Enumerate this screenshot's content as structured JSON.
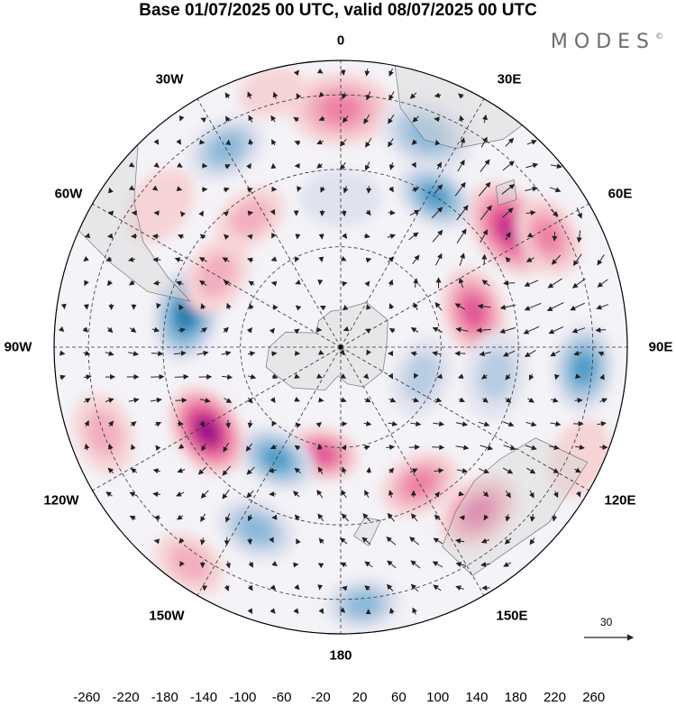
{
  "title": "Base 01/07/2025 00 UTC, valid 08/07/2025 00 UTC",
  "brand": "MODES",
  "brand_mark": "©",
  "longitude_labels": [
    {
      "id": "lon-0",
      "text": "0",
      "angle": 0
    },
    {
      "id": "lon-30e",
      "text": "30E",
      "angle": 30
    },
    {
      "id": "lon-60e",
      "text": "60E",
      "angle": 60
    },
    {
      "id": "lon-90e",
      "text": "90E",
      "angle": 90
    },
    {
      "id": "lon-120e",
      "text": "120E",
      "angle": 120
    },
    {
      "id": "lon-150e",
      "text": "150E",
      "angle": 150
    },
    {
      "id": "lon-180",
      "text": "180",
      "angle": 180
    },
    {
      "id": "lon-150w",
      "text": "150W",
      "angle": 210
    },
    {
      "id": "lon-120w",
      "text": "120W",
      "angle": 240
    },
    {
      "id": "lon-90w",
      "text": "90W",
      "angle": 270
    },
    {
      "id": "lon-60w",
      "text": "60W",
      "angle": 300
    },
    {
      "id": "lon-30w",
      "text": "30W",
      "angle": 330
    }
  ],
  "reference_vector": "30",
  "colorbar": {
    "colors": [
      "#0b2f4f",
      "#1b5a87",
      "#2c7bb0",
      "#4f9cc8",
      "#8ab9d9",
      "#b8cce2",
      "#e0e2ee",
      "#ffffff",
      "#f6d3d6",
      "#f2afc0",
      "#ed83a6",
      "#e15896",
      "#c82b8e",
      "#9a1587",
      "#5e0f78"
    ],
    "labels": [
      "-260",
      "-220",
      "-180",
      "-140",
      "-100",
      "-60",
      "-20",
      "20",
      "60",
      "100",
      "140",
      "180",
      "220",
      "260"
    ]
  },
  "anomalies": [
    {
      "lon": 0,
      "r": 0.83,
      "a": 0.13,
      "v": 120
    },
    {
      "lon": 0,
      "r": 0.52,
      "a": 0.1,
      "v": -60
    },
    {
      "lon": 22,
      "r": 0.8,
      "a": 0.12,
      "v": -150
    },
    {
      "lon": 32,
      "r": 0.62,
      "a": 0.1,
      "v": -160
    },
    {
      "lon": 55,
      "r": 0.72,
      "a": 0.13,
      "v": 200
    },
    {
      "lon": 62,
      "r": 0.82,
      "a": 0.1,
      "v": 150
    },
    {
      "lon": 75,
      "r": 0.48,
      "a": 0.11,
      "v": 160
    },
    {
      "lon": 95,
      "r": 0.85,
      "a": 0.11,
      "v": -180
    },
    {
      "lon": 100,
      "r": 0.55,
      "a": 0.11,
      "v": -110
    },
    {
      "lon": 110,
      "r": 0.3,
      "a": 0.1,
      "v": -90
    },
    {
      "lon": 140,
      "r": 0.75,
      "a": 0.11,
      "v": 190
    },
    {
      "lon": 150,
      "r": 0.55,
      "a": 0.1,
      "v": 130
    },
    {
      "lon": 115,
      "r": 0.92,
      "a": 0.1,
      "v": 60
    },
    {
      "lon": 175,
      "r": 0.9,
      "a": 0.09,
      "v": -140
    },
    {
      "lon": 190,
      "r": 0.38,
      "a": 0.09,
      "v": 180
    },
    {
      "lon": 205,
      "r": 0.7,
      "a": 0.1,
      "v": -120
    },
    {
      "lon": 210,
      "r": 0.45,
      "a": 0.1,
      "v": -190
    },
    {
      "lon": 215,
      "r": 0.92,
      "a": 0.09,
      "v": 80
    },
    {
      "lon": 238,
      "r": 0.55,
      "a": 0.12,
      "v": 240
    },
    {
      "lon": 250,
      "r": 0.88,
      "a": 0.1,
      "v": 110
    },
    {
      "lon": 282,
      "r": 0.55,
      "a": 0.12,
      "v": -200
    },
    {
      "lon": 300,
      "r": 0.5,
      "a": 0.1,
      "v": 90
    },
    {
      "lon": 308,
      "r": 0.8,
      "a": 0.1,
      "v": 60
    },
    {
      "lon": 330,
      "r": 0.8,
      "a": 0.1,
      "v": -120
    },
    {
      "lon": 325,
      "r": 0.55,
      "a": 0.09,
      "v": 100
    },
    {
      "lon": 345,
      "r": 0.92,
      "a": 0.08,
      "v": 60
    }
  ]
}
